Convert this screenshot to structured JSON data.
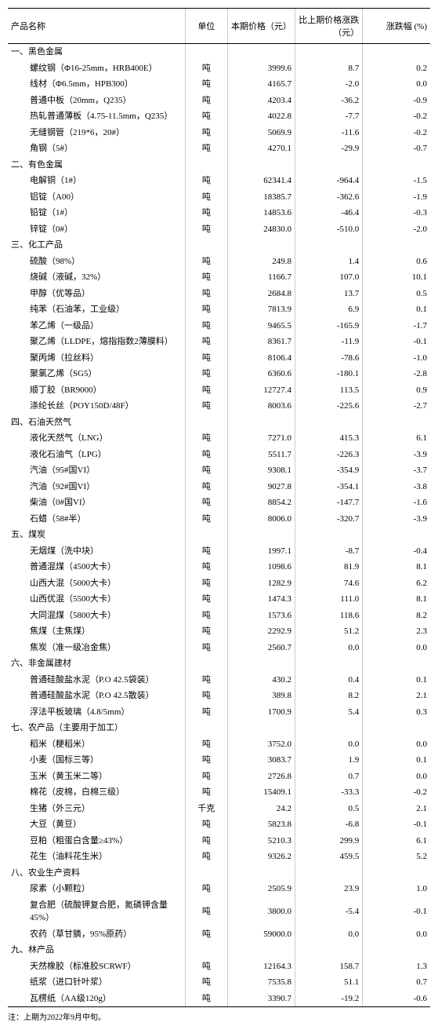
{
  "headers": {
    "name": "产品名称",
    "unit": "单位",
    "price": "本期价格（元）",
    "change": "比上期价格涨跌（元）",
    "pct": "涨跌幅 (%)"
  },
  "footnote": "注：上期为2022年9月中旬。",
  "sections": [
    {
      "title": "一、黑色金属",
      "rows": [
        {
          "name": "螺纹钢（Φ16-25mm，HRB400E）",
          "unit": "吨",
          "price": "3999.6",
          "change": "8.7",
          "pct": "0.2"
        },
        {
          "name": "线材（Φ6.5mm，HPB300）",
          "unit": "吨",
          "price": "4165.7",
          "change": "-2.0",
          "pct": "0.0"
        },
        {
          "name": "普通中板（20mm，Q235）",
          "unit": "吨",
          "price": "4203.4",
          "change": "-36.2",
          "pct": "-0.9"
        },
        {
          "name": "热轧普通薄板（4.75-11.5mm，Q235）",
          "unit": "吨",
          "price": "4022.8",
          "change": "-7.7",
          "pct": "-0.2"
        },
        {
          "name": "无缝钢管（219*6，20#）",
          "unit": "吨",
          "price": "5069.9",
          "change": "-11.6",
          "pct": "-0.2"
        },
        {
          "name": "角钢（5#）",
          "unit": "吨",
          "price": "4270.1",
          "change": "-29.9",
          "pct": "-0.7"
        }
      ]
    },
    {
      "title": "二、有色金属",
      "rows": [
        {
          "name": "电解铜（1#）",
          "unit": "吨",
          "price": "62341.4",
          "change": "-964.4",
          "pct": "-1.5"
        },
        {
          "name": "铝锭（A00）",
          "unit": "吨",
          "price": "18385.7",
          "change": "-362.6",
          "pct": "-1.9"
        },
        {
          "name": "铅锭（1#）",
          "unit": "吨",
          "price": "14853.6",
          "change": "-46.4",
          "pct": "-0.3"
        },
        {
          "name": "锌锭（0#）",
          "unit": "吨",
          "price": "24830.0",
          "change": "-510.0",
          "pct": "-2.0"
        }
      ]
    },
    {
      "title": "三、化工产品",
      "rows": [
        {
          "name": "硫酸（98%）",
          "unit": "吨",
          "price": "249.8",
          "change": "1.4",
          "pct": "0.6"
        },
        {
          "name": "烧碱（液碱，32%）",
          "unit": "吨",
          "price": "1166.7",
          "change": "107.0",
          "pct": "10.1"
        },
        {
          "name": "甲醇（优等品）",
          "unit": "吨",
          "price": "2684.8",
          "change": "13.7",
          "pct": "0.5"
        },
        {
          "name": "纯苯（石油苯，工业级）",
          "unit": "吨",
          "price": "7813.9",
          "change": "6.9",
          "pct": "0.1"
        },
        {
          "name": "苯乙烯（一级品）",
          "unit": "吨",
          "price": "9465.5",
          "change": "-165.9",
          "pct": "-1.7"
        },
        {
          "name": "聚乙烯（LLDPE，熔指指数2薄膜料）",
          "unit": "吨",
          "price": "8361.7",
          "change": "-11.9",
          "pct": "-0.1"
        },
        {
          "name": "聚丙烯（拉丝料）",
          "unit": "吨",
          "price": "8106.4",
          "change": "-78.6",
          "pct": "-1.0"
        },
        {
          "name": "聚氯乙烯（SG5）",
          "unit": "吨",
          "price": "6360.6",
          "change": "-180.1",
          "pct": "-2.8"
        },
        {
          "name": "顺丁胶（BR9000）",
          "unit": "吨",
          "price": "12727.4",
          "change": "113.5",
          "pct": "0.9"
        },
        {
          "name": "涤纶长丝（POY150D/48F）",
          "unit": "吨",
          "price": "8003.6",
          "change": "-225.6",
          "pct": "-2.7"
        }
      ]
    },
    {
      "title": "四、石油天然气",
      "rows": [
        {
          "name": "液化天然气（LNG）",
          "unit": "吨",
          "price": "7271.0",
          "change": "415.3",
          "pct": "6.1"
        },
        {
          "name": "液化石油气（LPG）",
          "unit": "吨",
          "price": "5511.7",
          "change": "-226.3",
          "pct": "-3.9"
        },
        {
          "name": "汽油（95#国VI）",
          "unit": "吨",
          "price": "9308.1",
          "change": "-354.9",
          "pct": "-3.7"
        },
        {
          "name": "汽油（92#国VI）",
          "unit": "吨",
          "price": "9027.8",
          "change": "-354.1",
          "pct": "-3.8"
        },
        {
          "name": "柴油（0#国VI）",
          "unit": "吨",
          "price": "8854.2",
          "change": "-147.7",
          "pct": "-1.6"
        },
        {
          "name": "石蜡（58#半）",
          "unit": "吨",
          "price": "8006.0",
          "change": "-320.7",
          "pct": "-3.9"
        }
      ]
    },
    {
      "title": "五、煤炭",
      "rows": [
        {
          "name": "无烟煤（洗中块）",
          "unit": "吨",
          "price": "1997.1",
          "change": "-8.7",
          "pct": "-0.4"
        },
        {
          "name": "普通混煤（4500大卡）",
          "unit": "吨",
          "price": "1098.6",
          "change": "81.9",
          "pct": "8.1"
        },
        {
          "name": "山西大混（5000大卡）",
          "unit": "吨",
          "price": "1282.9",
          "change": "74.6",
          "pct": "6.2"
        },
        {
          "name": "山西优混（5500大卡）",
          "unit": "吨",
          "price": "1474.3",
          "change": "111.0",
          "pct": "8.1"
        },
        {
          "name": "大同混煤（5800大卡）",
          "unit": "吨",
          "price": "1573.6",
          "change": "118.6",
          "pct": "8.2"
        },
        {
          "name": "焦煤（主焦煤）",
          "unit": "吨",
          "price": "2292.9",
          "change": "51.2",
          "pct": "2.3"
        },
        {
          "name": "焦炭（准一级冶金焦）",
          "unit": "吨",
          "price": "2560.7",
          "change": "0.0",
          "pct": "0.0"
        }
      ]
    },
    {
      "title": "六、非金属建材",
      "rows": [
        {
          "name": "普通硅酸盐水泥（P.O 42.5袋装）",
          "unit": "吨",
          "price": "430.2",
          "change": "0.4",
          "pct": "0.1"
        },
        {
          "name": "普通硅酸盐水泥（P.O 42.5散装）",
          "unit": "吨",
          "price": "389.8",
          "change": "8.2",
          "pct": "2.1"
        },
        {
          "name": "浮法平板玻璃（4.8/5mm）",
          "unit": "吨",
          "price": "1700.9",
          "change": "5.4",
          "pct": "0.3"
        }
      ]
    },
    {
      "title": "七、农产品（主要用于加工）",
      "rows": [
        {
          "name": "稻米（粳稻米）",
          "unit": "吨",
          "price": "3752.0",
          "change": "0.0",
          "pct": "0.0"
        },
        {
          "name": "小麦（国标三等）",
          "unit": "吨",
          "price": "3083.7",
          "change": "1.9",
          "pct": "0.1"
        },
        {
          "name": "玉米（黄玉米二等）",
          "unit": "吨",
          "price": "2726.8",
          "change": "0.7",
          "pct": "0.0"
        },
        {
          "name": "棉花（皮棉，白棉三级）",
          "unit": "吨",
          "price": "15409.1",
          "change": "-33.3",
          "pct": "-0.2"
        },
        {
          "name": "生猪（外三元）",
          "unit": "千克",
          "price": "24.2",
          "change": "0.5",
          "pct": "2.1"
        },
        {
          "name": "大豆（黄豆）",
          "unit": "吨",
          "price": "5823.8",
          "change": "-6.8",
          "pct": "-0.1"
        },
        {
          "name": "豆粕（粗蛋白含量≥43%）",
          "unit": "吨",
          "price": "5210.3",
          "change": "299.9",
          "pct": "6.1"
        },
        {
          "name": "花生（油料花生米）",
          "unit": "吨",
          "price": "9326.2",
          "change": "459.5",
          "pct": "5.2"
        }
      ]
    },
    {
      "title": "八、农业生产资料",
      "rows": [
        {
          "name": "尿素（小颗粒）",
          "unit": "吨",
          "price": "2505.9",
          "change": "23.9",
          "pct": "1.0"
        },
        {
          "name": "复合肥（硫酸钾复合肥，氮磷钾含量45%）",
          "unit": "吨",
          "price": "3800.0",
          "change": "-5.4",
          "pct": "-0.1"
        },
        {
          "name": "农药（草甘膦，95%原药）",
          "unit": "吨",
          "price": "59000.0",
          "change": "0.0",
          "pct": "0.0"
        }
      ]
    },
    {
      "title": "九、林产品",
      "rows": [
        {
          "name": "天然橡胶（标准胶SCRWF）",
          "unit": "吨",
          "price": "12164.3",
          "change": "158.7",
          "pct": "1.3"
        },
        {
          "name": "纸浆（进口针叶浆）",
          "unit": "吨",
          "price": "7535.8",
          "change": "51.1",
          "pct": "0.7"
        },
        {
          "name": "瓦楞纸（AA级120g）",
          "unit": "吨",
          "price": "3390.7",
          "change": "-19.2",
          "pct": "-0.6"
        }
      ]
    }
  ]
}
